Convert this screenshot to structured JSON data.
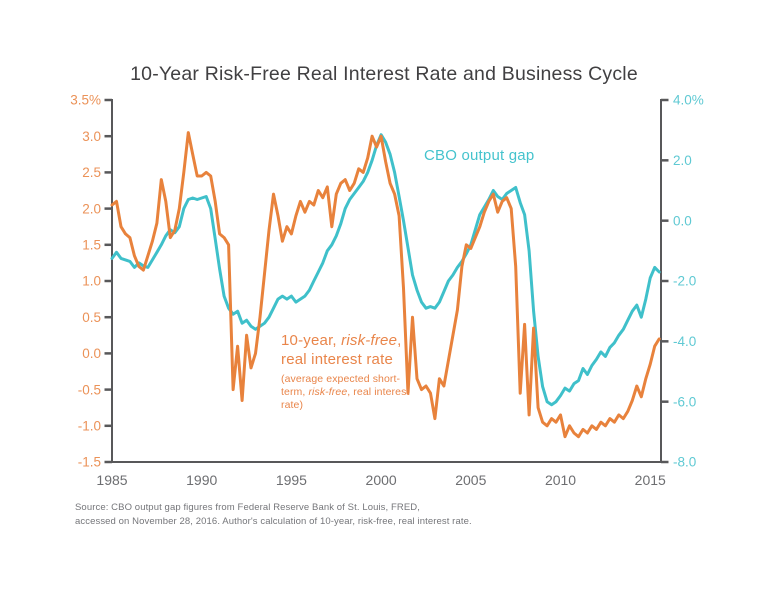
{
  "title": {
    "text": "10-Year Risk-Free Real Interest Rate and Business Cycle",
    "color": "#414042"
  },
  "source_note": {
    "line1": "Source: CBO output gap figures from Federal Reserve Bank of St. Louis, FRED,",
    "line2": "accessed on November 28, 2016. Author's calculation of 10-year, risk-free, real interest rate.",
    "color": "#75767A"
  },
  "colors": {
    "axis_line": "#58585A",
    "x_tick_label": "#6D6E71",
    "left_tick_label": "#EB9258",
    "right_tick_label": "#5FC9D3",
    "orange_line": "#E8823C",
    "teal_line": "#3FC0CA",
    "cbo_label_text": "#45C3CD",
    "rate_label_text": "#E9854A"
  },
  "chart_data": {
    "type": "line",
    "title": "10-Year Risk-Free Real Interest Rate and Business Cycle",
    "x_axis": {
      "range": [
        1985,
        2015.6
      ],
      "tick_years": [
        1985,
        1990,
        1995,
        2000,
        2005,
        2010,
        2015
      ],
      "tick_labels": [
        "1985",
        "1990",
        "1995",
        "2000",
        "2005",
        "2010",
        "2015"
      ]
    },
    "left_axis": {
      "range": [
        -1.5,
        3.5
      ],
      "tick_values": [
        3.5,
        3.0,
        2.5,
        2.0,
        1.5,
        1.0,
        0.5,
        0.0,
        -0.5,
        -1.0,
        -1.5
      ],
      "tick_labels": [
        "3.5%",
        "3.0",
        "2.5",
        "2.0",
        "1.5",
        "1.0",
        "0.5",
        "0.0",
        "-0.5",
        "-1.0",
        "-1.5"
      ]
    },
    "right_axis": {
      "range": [
        -8.0,
        4.0
      ],
      "tick_values": [
        4.0,
        2.0,
        0.0,
        -2.0,
        -4.0,
        -6.0,
        -8.0
      ],
      "tick_labels": [
        "4.0%",
        "2.0",
        "0.0",
        "-2.0",
        "-4.0",
        "-6.0",
        "-8.0"
      ]
    },
    "series": [
      {
        "name": "CBO output gap",
        "axis": "right",
        "color": "#3FC0CA",
        "x_start": 1985.0,
        "x_step": 0.25,
        "values": [
          -1.25,
          -1.05,
          -1.25,
          -1.3,
          -1.35,
          -1.55,
          -1.4,
          -1.5,
          -1.55,
          -1.3,
          -1.05,
          -0.8,
          -0.5,
          -0.3,
          -0.4,
          -0.2,
          0.4,
          0.7,
          0.75,
          0.7,
          0.75,
          0.8,
          0.4,
          -0.6,
          -1.6,
          -2.5,
          -2.9,
          -3.1,
          -3.0,
          -3.4,
          -3.3,
          -3.5,
          -3.6,
          -3.5,
          -3.4,
          -3.2,
          -2.9,
          -2.6,
          -2.5,
          -2.6,
          -2.5,
          -2.7,
          -2.6,
          -2.5,
          -2.3,
          -2.0,
          -1.7,
          -1.4,
          -1.0,
          -0.8,
          -0.5,
          -0.1,
          0.4,
          0.7,
          0.9,
          1.1,
          1.3,
          1.6,
          2.0,
          2.5,
          2.85,
          2.6,
          2.2,
          1.6,
          0.8,
          0.0,
          -0.9,
          -1.8,
          -2.3,
          -2.7,
          -2.9,
          -2.85,
          -2.9,
          -2.7,
          -2.35,
          -2.0,
          -1.8,
          -1.55,
          -1.35,
          -1.1,
          -0.8,
          -0.3,
          0.2,
          0.45,
          0.7,
          1.0,
          0.8,
          0.7,
          0.9,
          1.0,
          1.1,
          0.6,
          0.2,
          -1.0,
          -3.0,
          -4.5,
          -5.5,
          -6.0,
          -6.1,
          -6.0,
          -5.8,
          -5.55,
          -5.65,
          -5.4,
          -5.3,
          -4.9,
          -5.1,
          -4.8,
          -4.6,
          -4.35,
          -4.5,
          -4.2,
          -4.05,
          -3.8,
          -3.6,
          -3.3,
          -3.0,
          -2.8,
          -3.2,
          -2.6,
          -1.9,
          -1.55,
          -1.7
        ]
      },
      {
        "name": "10-year, risk-free, real interest rate (average expected short-term, risk-free, real interest rate)",
        "axis": "left",
        "color": "#E8823C",
        "x_start": 1985.0,
        "x_step": 0.25,
        "values": [
          2.05,
          2.1,
          1.75,
          1.65,
          1.6,
          1.35,
          1.2,
          1.15,
          1.35,
          1.55,
          1.8,
          2.4,
          2.1,
          1.6,
          1.7,
          2.0,
          2.5,
          3.05,
          2.75,
          2.45,
          2.45,
          2.5,
          2.45,
          2.1,
          1.65,
          1.6,
          1.5,
          -0.5,
          0.1,
          -0.65,
          0.25,
          -0.2,
          0.0,
          0.5,
          1.1,
          1.7,
          2.2,
          1.9,
          1.55,
          1.75,
          1.65,
          1.9,
          2.1,
          1.95,
          2.1,
          2.05,
          2.25,
          2.15,
          2.3,
          1.75,
          2.2,
          2.35,
          2.4,
          2.25,
          2.35,
          2.55,
          2.5,
          2.7,
          3.0,
          2.85,
          3.0,
          2.65,
          2.35,
          2.2,
          1.9,
          0.9,
          -0.55,
          0.5,
          -0.35,
          -0.5,
          -0.45,
          -0.55,
          -0.9,
          -0.35,
          -0.45,
          -0.1,
          0.25,
          0.6,
          1.2,
          1.5,
          1.45,
          1.6,
          1.75,
          1.95,
          2.1,
          2.2,
          1.95,
          2.1,
          2.15,
          2.0,
          1.2,
          -0.55,
          0.4,
          -0.85,
          0.35,
          -0.75,
          -0.95,
          -1.0,
          -0.9,
          -0.95,
          -0.85,
          -1.15,
          -1.0,
          -1.1,
          -1.15,
          -1.05,
          -1.1,
          -1.0,
          -1.05,
          -0.95,
          -1.0,
          -0.9,
          -0.95,
          -0.85,
          -0.9,
          -0.8,
          -0.65,
          -0.45,
          -0.6,
          -0.35,
          -0.15,
          0.1,
          0.2
        ]
      }
    ],
    "annotations": {
      "cbo_label": {
        "text": "CBO output gap"
      },
      "rate_label": {
        "line1_pre": "10-year, ",
        "line1_italic": "risk-free",
        "line1_post": ",",
        "line2": "real interest rate",
        "paren_pre": "(average expected short-term, ",
        "paren_italic": "risk-free",
        "paren_post": ", real interest rate)"
      }
    },
    "grid": false,
    "legend": "inline annotations"
  }
}
